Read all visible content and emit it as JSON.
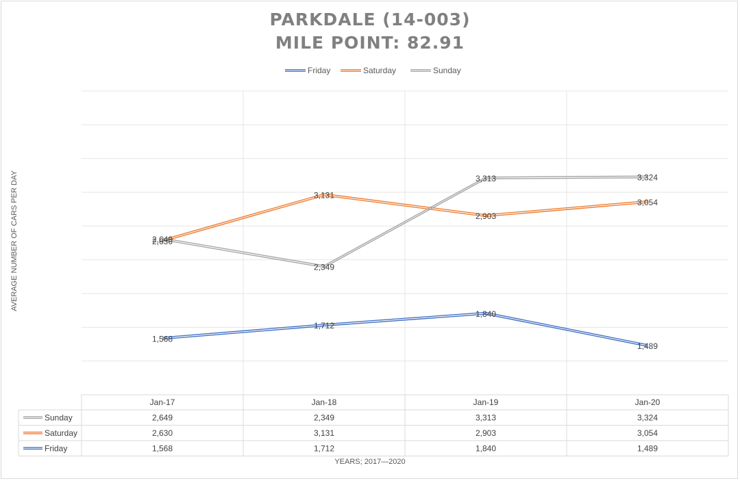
{
  "chart_data": {
    "type": "line",
    "title_line1": "PARKDALE (14-003)",
    "title_line2": "MILE POINT: 82.91",
    "xlabel": "YEARS; 2017—2020",
    "ylabel": "AVERAGE NUMBER OF CARS PER DAY",
    "categories": [
      "Jan-17",
      "Jan-18",
      "Jan-19",
      "Jan-20"
    ],
    "legend_position": "top",
    "gridlines": true,
    "series": [
      {
        "name": "Friday",
        "color": "#4472c4",
        "values": [
          1568,
          1712,
          1840,
          1489
        ],
        "labels": [
          "1,568",
          "1,712",
          "1,840",
          "1,489"
        ]
      },
      {
        "name": "Saturday",
        "color": "#ed7d31",
        "values": [
          2630,
          3131,
          2903,
          3054
        ],
        "labels": [
          "2,630",
          "3,131",
          "2,903",
          "3,054"
        ]
      },
      {
        "name": "Sunday",
        "color": "#a5a5a5",
        "values": [
          2649,
          2349,
          3313,
          3324
        ],
        "labels": [
          "2,649",
          "2,349",
          "3,313",
          "3,324"
        ]
      }
    ],
    "table_order": [
      "Sunday",
      "Saturday",
      "Friday"
    ]
  }
}
